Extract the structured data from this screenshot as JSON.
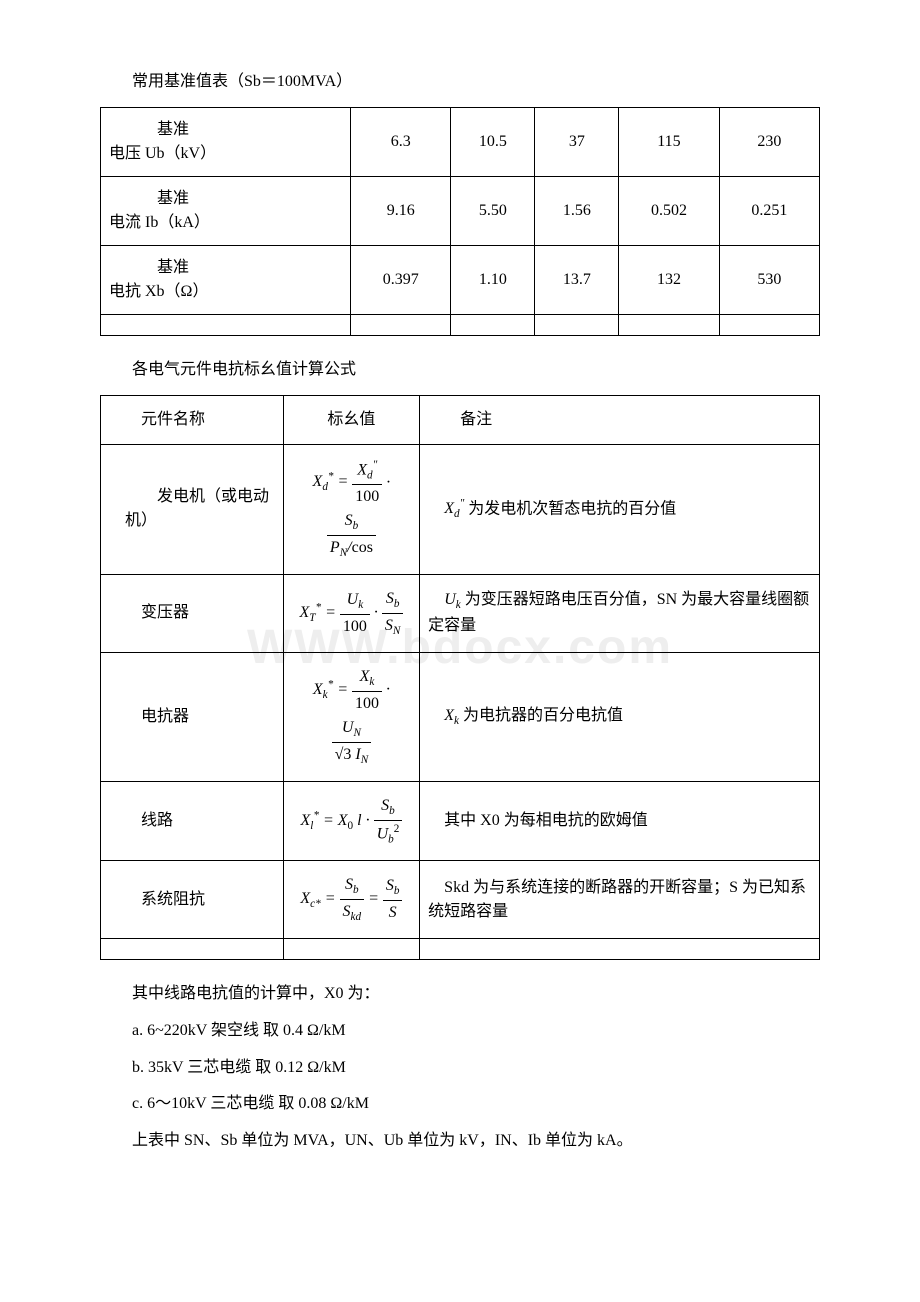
{
  "title1": "常用基准值表（Sb＝100MVA）",
  "table1": {
    "rows": [
      {
        "label_prefix": "　　　基准",
        "label_main": "电压 Ub（kV）",
        "v": [
          "6.3",
          "10.5",
          "37",
          "115",
          "230"
        ]
      },
      {
        "label_prefix": "　　　基准",
        "label_main": "电流 Ib（kA）",
        "v": [
          "9.16",
          "5.50",
          "1.56",
          "0.502",
          "0.251"
        ]
      },
      {
        "label_prefix": "　　　基准",
        "label_main": "电抗 Xb（Ω）",
        "v": [
          "0.397",
          "1.10",
          "13.7",
          "132",
          "530"
        ]
      }
    ]
  },
  "title2": "各电气元件电抗标幺值计算公式",
  "table2": {
    "headers": [
      "元件名称",
      "标幺值",
      "备注"
    ],
    "rows": [
      {
        "name": "发电机（或电动机）",
        "note_pre": "",
        "note_var_html": "X<sub>d</sub><sup>\"</sup>",
        "note_post": " 为发电机次暂态电抗的百分值"
      },
      {
        "name": "变压器",
        "note_pre": "",
        "note_var_html": "U<sub>k</sub>",
        "note_post": " 为变压器短路电压百分值，SN 为最大容量线圈额定容量"
      },
      {
        "name": "电抗器",
        "note_pre": "",
        "note_var_html": "X<sub>k</sub>",
        "note_post": " 为电抗器的百分电抗值"
      },
      {
        "name": "线路",
        "note_pre": "　其中 X0 为每相电抗的欧姆值",
        "note_var_html": "",
        "note_post": ""
      },
      {
        "name": "系统阻抗",
        "note_pre": "　Skd 为与系统连接的断路器的开断容量；S 为已知系统短路容量",
        "note_var_html": "",
        "note_post": ""
      }
    ]
  },
  "after": [
    "其中线路电抗值的计算中，X0 为：",
    "a. 6~220kV 架空线 取 0.4 Ω/kM",
    "b. 35kV 三芯电缆 取 0.12 Ω/kM",
    "c. 6～10kV 三芯电缆 取 0.08 Ω/kM",
    "上表中 SN、Sb 单位为 MVA，UN、Ub 单位为 kV，IN、Ib 单位为 kA。"
  ],
  "watermark": "WWW.bdocx.com"
}
